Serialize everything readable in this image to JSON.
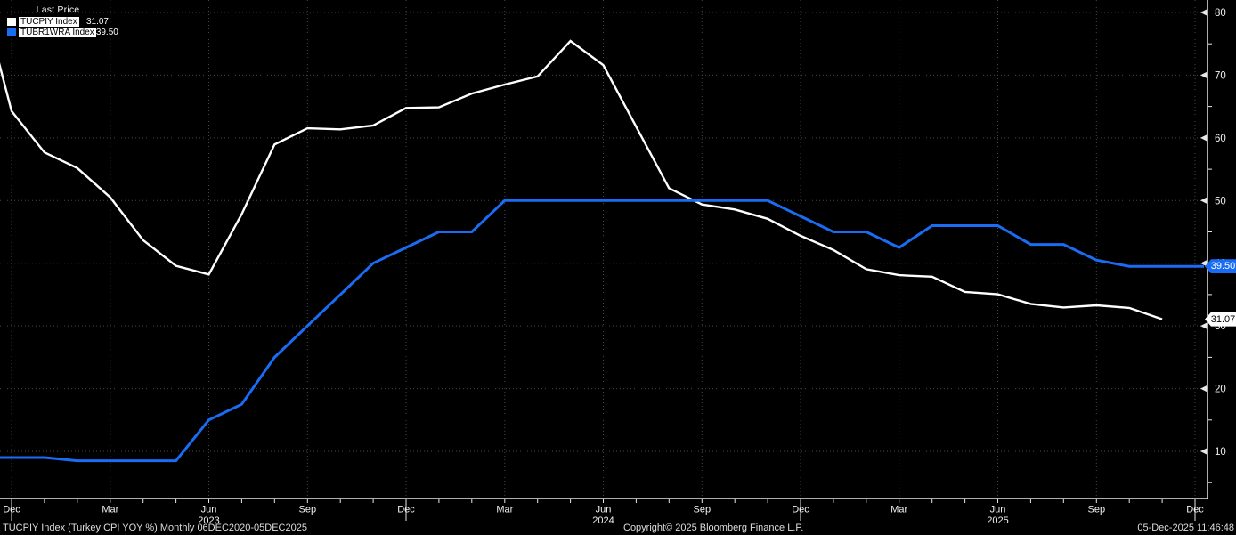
{
  "legend": {
    "title": "Last Price",
    "items": [
      {
        "label": "TUCPIY Index",
        "value": "31.07",
        "color": "#ffffff"
      },
      {
        "label": "TUBR1WRA Index",
        "value": "39.50",
        "color": "#1a6cf5"
      }
    ]
  },
  "footer": {
    "left": "TUCPIY Index (Turkey CPI YOY %) Monthly 06DEC2020-05DEC2025",
    "center": "Copyright© 2025 Bloomberg Finance L.P.",
    "right": "05-Dec-2025 11:46:48"
  },
  "chart_data": {
    "type": "line",
    "title": "",
    "xlabel": "",
    "ylabel": "",
    "ylim": [
      2.5,
      82
    ],
    "grid": "dotted",
    "legend_position": "top-left",
    "background_color": "#000000",
    "y_ticks": [
      10,
      20,
      30,
      40,
      50,
      60,
      70,
      80
    ],
    "y_minor_step": 5,
    "x_visible_range": "Dec 2022 - Dec 2025",
    "x_quarter_labels": [
      "Dec",
      "Mar",
      "Jun",
      "Sep",
      "Dec",
      "Mar",
      "Jun",
      "Sep",
      "Dec",
      "Mar",
      "Jun",
      "Sep",
      "Dec"
    ],
    "year_labels": [
      "2023",
      "2024",
      "2025"
    ],
    "x": [
      "Dec 2022",
      "Jan 2023",
      "Feb 2023",
      "Mar 2023",
      "Apr 2023",
      "May 2023",
      "Jun 2023",
      "Jul 2023",
      "Aug 2023",
      "Sep 2023",
      "Oct 2023",
      "Nov 2023",
      "Dec 2023",
      "Jan 2024",
      "Feb 2024",
      "Mar 2024",
      "Apr 2024",
      "May 2024",
      "Jun 2024",
      "Jul 2024",
      "Aug 2024",
      "Sep 2024",
      "Oct 2024",
      "Nov 2024",
      "Dec 2024",
      "Jan 2025",
      "Feb 2025",
      "Mar 2025",
      "Apr 2025",
      "May 2025",
      "Jun 2025",
      "Jul 2025",
      "Aug 2025",
      "Sep 2025",
      "Oct 2025",
      "Nov 2025",
      "Dec 2025"
    ],
    "series": [
      {
        "name": "TUCPIY Index",
        "color": "#ffffff",
        "last_label": "31.07",
        "prev_value": 84.39,
        "extend_to_edge": false,
        "values": [
          64.27,
          57.68,
          55.18,
          50.51,
          43.68,
          39.59,
          38.21,
          47.83,
          58.94,
          61.53,
          61.36,
          61.98,
          64.77,
          64.86,
          67.07,
          68.5,
          69.8,
          75.45,
          71.6,
          61.78,
          51.97,
          49.38,
          48.58,
          47.09,
          44.38,
          42.12,
          39.05,
          38.1,
          37.86,
          35.41,
          35.05,
          33.52,
          32.95,
          33.29,
          32.87,
          31.07,
          null
        ]
      },
      {
        "name": "TUBR1WRA Index",
        "color": "#1a6cf5",
        "last_label": "39.50",
        "prev_value": 9.0,
        "extend_to_edge": true,
        "values": [
          9.0,
          9.0,
          8.5,
          8.5,
          8.5,
          8.5,
          15.0,
          17.5,
          25.0,
          30.0,
          35.0,
          40.0,
          42.5,
          45.0,
          45.0,
          50.0,
          50.0,
          50.0,
          50.0,
          50.0,
          50.0,
          50.0,
          50.0,
          50.0,
          47.5,
          45.0,
          45.0,
          42.5,
          46.0,
          46.0,
          46.0,
          43.0,
          43.0,
          40.5,
          39.5,
          39.5,
          39.5
        ]
      }
    ]
  }
}
